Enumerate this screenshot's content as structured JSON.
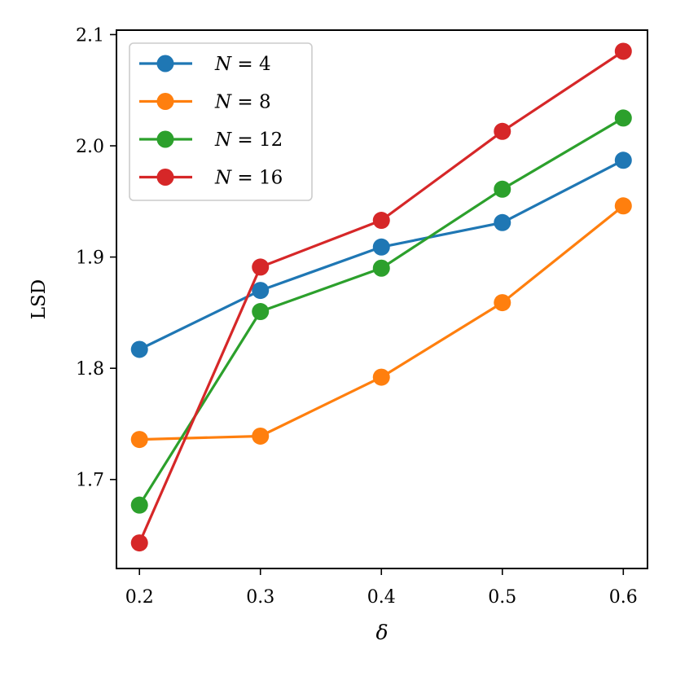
{
  "chart_data": {
    "type": "line",
    "xlabel": "δ",
    "ylabel": "LSD",
    "x": [
      0.2,
      0.3,
      0.4,
      0.5,
      0.6
    ],
    "x_ticks": [
      "0.2",
      "0.3",
      "0.4",
      "0.5",
      "0.6"
    ],
    "y_ticks": [
      "1.7",
      "1.8",
      "1.9",
      "2.0",
      "2.1"
    ],
    "y_tick_values": [
      1.7,
      1.8,
      1.9,
      2.0,
      2.1
    ],
    "xlim": [
      0.181,
      0.62
    ],
    "ylim": [
      1.62,
      2.104
    ],
    "grid": false,
    "legend_position": "top-left",
    "series": [
      {
        "name": "N = 4",
        "legend_var": "N",
        "legend_rest": " = 4",
        "color": "#1f77b4",
        "values": [
          1.817,
          1.87,
          1.909,
          1.931,
          1.987
        ]
      },
      {
        "name": "N = 8",
        "legend_var": "N",
        "legend_rest": " = 8",
        "color": "#ff7f0e",
        "values": [
          1.736,
          1.739,
          1.792,
          1.859,
          1.946
        ]
      },
      {
        "name": "N = 12",
        "legend_var": "N",
        "legend_rest": " = 12",
        "color": "#2ca02c",
        "values": [
          1.677,
          1.851,
          1.89,
          1.961,
          2.025
        ]
      },
      {
        "name": "N = 16",
        "legend_var": "N",
        "legend_rest": " = 16",
        "color": "#d62728",
        "values": [
          1.643,
          1.891,
          1.933,
          2.013,
          2.085
        ]
      }
    ]
  }
}
